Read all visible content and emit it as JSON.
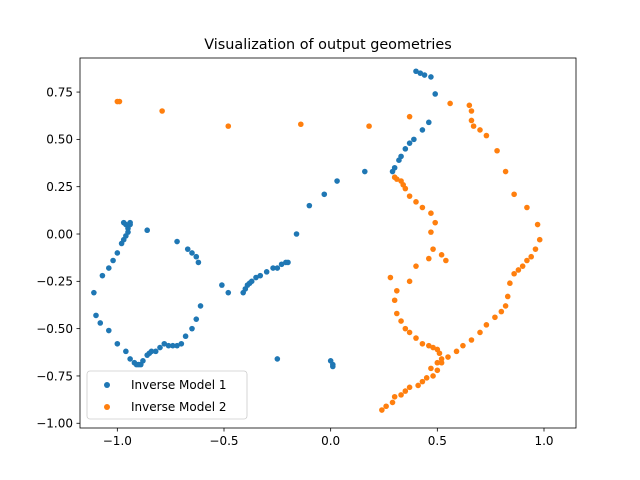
{
  "chart_data": {
    "type": "scatter",
    "title": "Visualization of output geometries",
    "xlabel": "",
    "ylabel": "",
    "xlim": [
      -1.175,
      1.15
    ],
    "ylim": [
      -1.025,
      0.93
    ],
    "xticks": [
      -1.0,
      -0.5,
      0.0,
      0.5,
      1.0
    ],
    "xtick_labels": [
      "−1.0",
      "−0.5",
      "0.0",
      "0.5",
      "1.0"
    ],
    "yticks": [
      0.75,
      0.5,
      0.25,
      0.0,
      -0.25,
      -0.5,
      -0.75,
      -1.0
    ],
    "ytick_labels": [
      "0.75",
      "0.50",
      "0.25",
      "0.00",
      "−0.25",
      "−0.50",
      "−0.75",
      "−1.00"
    ],
    "grid": false,
    "legend_position": "lower-left",
    "series": [
      {
        "name": "Inverse Model 1",
        "color": "#1f77b4",
        "points": [
          [
            0.4,
            0.86
          ],
          [
            0.42,
            0.85
          ],
          [
            0.44,
            0.84
          ],
          [
            0.47,
            0.83
          ],
          [
            0.49,
            0.74
          ],
          [
            0.46,
            0.59
          ],
          [
            0.43,
            0.55
          ],
          [
            0.39,
            0.5
          ],
          [
            0.37,
            0.48
          ],
          [
            0.35,
            0.45
          ],
          [
            0.33,
            0.41
          ],
          [
            0.32,
            0.39
          ],
          [
            0.3,
            0.35
          ],
          [
            0.29,
            0.33
          ],
          [
            0.16,
            0.33
          ],
          [
            0.03,
            0.28
          ],
          [
            -0.03,
            0.21
          ],
          [
            -0.1,
            0.15
          ],
          [
            -0.16,
            0.0
          ],
          [
            -0.2,
            -0.15
          ],
          [
            -0.21,
            -0.15
          ],
          [
            -0.23,
            -0.16
          ],
          [
            -0.25,
            -0.18
          ],
          [
            -0.27,
            -0.18
          ],
          [
            -0.3,
            -0.2
          ],
          [
            -0.33,
            -0.22
          ],
          [
            -0.35,
            -0.23
          ],
          [
            -0.37,
            -0.25
          ],
          [
            -0.38,
            -0.26
          ],
          [
            -0.39,
            -0.27
          ],
          [
            -0.4,
            -0.29
          ],
          [
            -0.41,
            -0.31
          ],
          [
            -0.25,
            -0.66
          ],
          [
            0.0,
            -0.67
          ],
          [
            0.01,
            -0.69
          ],
          [
            0.01,
            -0.7
          ],
          [
            -0.48,
            -0.31
          ],
          [
            -0.51,
            -0.27
          ],
          [
            -0.61,
            -0.38
          ],
          [
            -0.63,
            -0.45
          ],
          [
            -0.65,
            -0.5
          ],
          [
            -0.68,
            -0.54
          ],
          [
            -0.7,
            -0.58
          ],
          [
            -0.72,
            -0.59
          ],
          [
            -0.74,
            -0.59
          ],
          [
            -0.76,
            -0.59
          ],
          [
            -0.78,
            -0.58
          ],
          [
            -0.8,
            -0.6
          ],
          [
            -0.82,
            -0.62
          ],
          [
            -0.84,
            -0.62
          ],
          [
            -0.85,
            -0.63
          ],
          [
            -0.86,
            -0.64
          ],
          [
            -0.88,
            -0.67
          ],
          [
            -0.89,
            -0.69
          ],
          [
            -0.9,
            -0.69
          ],
          [
            -0.91,
            -0.69
          ],
          [
            -0.92,
            -0.68
          ],
          [
            -0.94,
            -0.66
          ],
          [
            -0.96,
            -0.62
          ],
          [
            -1.0,
            -0.58
          ],
          [
            -1.04,
            -0.51
          ],
          [
            -1.08,
            -0.47
          ],
          [
            -1.1,
            -0.43
          ],
          [
            -1.11,
            -0.31
          ],
          [
            -1.07,
            -0.22
          ],
          [
            -1.04,
            -0.18
          ],
          [
            -1.02,
            -0.14
          ],
          [
            -1.0,
            -0.1
          ],
          [
            -0.98,
            -0.05
          ],
          [
            -0.97,
            -0.03
          ],
          [
            -0.96,
            -0.01
          ],
          [
            -0.95,
            0.01
          ],
          [
            -0.95,
            0.03
          ],
          [
            -0.94,
            0.05
          ],
          [
            -0.94,
            0.06
          ],
          [
            -0.96,
            0.05
          ],
          [
            -0.97,
            0.06
          ],
          [
            -0.86,
            0.02
          ],
          [
            -0.72,
            -0.04
          ],
          [
            -0.67,
            -0.08
          ],
          [
            -0.65,
            -0.1
          ],
          [
            -0.63,
            -0.12
          ],
          [
            -0.62,
            -0.15
          ]
        ]
      },
      {
        "name": "Inverse Model 2",
        "color": "#ff7f0e",
        "points": [
          [
            -1.0,
            0.7
          ],
          [
            -0.99,
            0.7
          ],
          [
            -0.79,
            0.65
          ],
          [
            -0.48,
            0.57
          ],
          [
            -0.14,
            0.58
          ],
          [
            0.18,
            0.57
          ],
          [
            0.37,
            0.62
          ],
          [
            0.56,
            0.69
          ],
          [
            0.65,
            0.68
          ],
          [
            0.66,
            0.65
          ],
          [
            0.66,
            0.6
          ],
          [
            0.67,
            0.57
          ],
          [
            0.7,
            0.55
          ],
          [
            0.73,
            0.52
          ],
          [
            0.78,
            0.44
          ],
          [
            0.82,
            0.33
          ],
          [
            0.86,
            0.21
          ],
          [
            0.92,
            0.14
          ],
          [
            0.97,
            0.05
          ],
          [
            0.98,
            -0.03
          ],
          [
            0.96,
            -0.08
          ],
          [
            0.94,
            -0.12
          ],
          [
            0.92,
            -0.14
          ],
          [
            0.9,
            -0.17
          ],
          [
            0.88,
            -0.19
          ],
          [
            0.86,
            -0.21
          ],
          [
            0.84,
            -0.26
          ],
          [
            0.83,
            -0.33
          ],
          [
            0.82,
            -0.38
          ],
          [
            0.8,
            -0.41
          ],
          [
            0.77,
            -0.44
          ],
          [
            0.73,
            -0.48
          ],
          [
            0.7,
            -0.52
          ],
          [
            0.66,
            -0.56
          ],
          [
            0.62,
            -0.59
          ],
          [
            0.59,
            -0.62
          ],
          [
            0.55,
            -0.65
          ],
          [
            0.52,
            -0.68
          ],
          [
            0.5,
            -0.72
          ],
          [
            0.48,
            -0.75
          ],
          [
            0.45,
            -0.76
          ],
          [
            0.43,
            -0.78
          ],
          [
            0.41,
            -0.8
          ],
          [
            0.37,
            -0.81
          ],
          [
            0.35,
            -0.83
          ],
          [
            0.33,
            -0.85
          ],
          [
            0.3,
            -0.86
          ],
          [
            0.29,
            -0.89
          ],
          [
            0.26,
            -0.91
          ],
          [
            0.24,
            -0.93
          ],
          [
            0.3,
            0.3
          ],
          [
            0.31,
            0.29
          ],
          [
            0.33,
            0.28
          ],
          [
            0.34,
            0.26
          ],
          [
            0.35,
            0.24
          ],
          [
            0.37,
            0.2
          ],
          [
            0.4,
            0.17
          ],
          [
            0.43,
            0.14
          ],
          [
            0.47,
            0.11
          ],
          [
            0.49,
            0.06
          ],
          [
            0.47,
            0.01
          ],
          [
            0.48,
            -0.08
          ],
          [
            0.46,
            -0.13
          ],
          [
            0.4,
            -0.17
          ],
          [
            0.37,
            -0.25
          ],
          [
            0.31,
            -0.3
          ],
          [
            0.3,
            -0.35
          ],
          [
            0.31,
            -0.42
          ],
          [
            0.33,
            -0.46
          ],
          [
            0.35,
            -0.5
          ],
          [
            0.37,
            -0.52
          ],
          [
            0.4,
            -0.55
          ],
          [
            0.43,
            -0.58
          ],
          [
            0.46,
            -0.59
          ],
          [
            0.48,
            -0.6
          ],
          [
            0.5,
            -0.61
          ],
          [
            0.51,
            -0.63
          ],
          [
            0.52,
            -0.66
          ],
          [
            0.5,
            -0.68
          ],
          [
            0.47,
            -0.71
          ],
          [
            0.54,
            -0.14
          ],
          [
            0.52,
            -0.11
          ],
          [
            0.28,
            -0.23
          ]
        ]
      }
    ]
  }
}
